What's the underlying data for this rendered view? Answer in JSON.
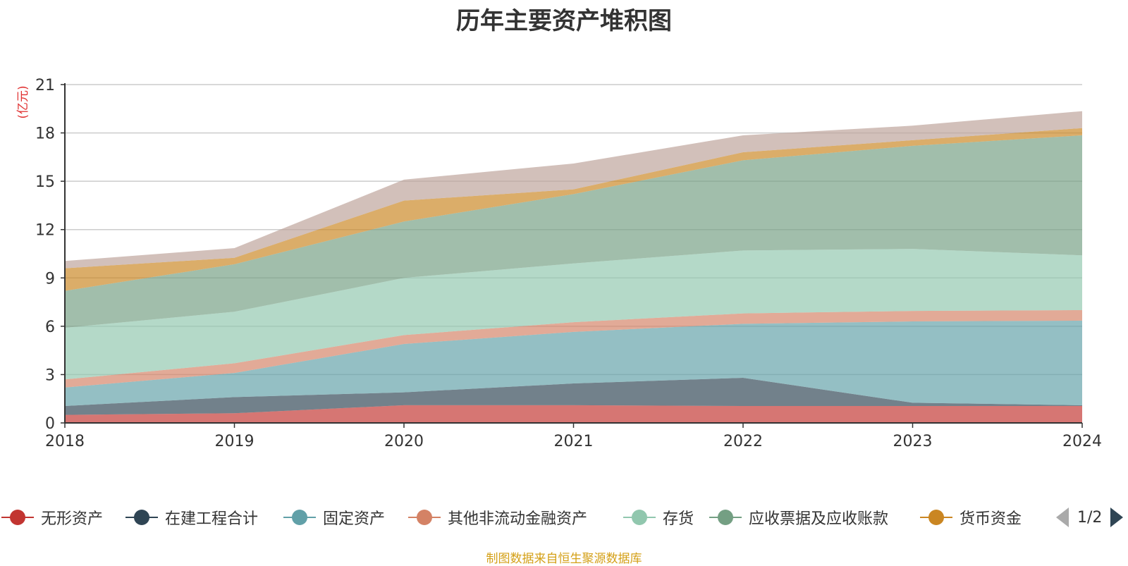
{
  "title": "历年主要资产堆积图",
  "unit_label": "(亿元)",
  "source": "制图数据来自恒生聚源数据库",
  "pager": {
    "text": "1/2"
  },
  "chart_data": {
    "type": "area",
    "stacked": true,
    "title": "历年主要资产堆积图",
    "ylabel": "(亿元)",
    "ylim": [
      0,
      21
    ],
    "yticks": [
      0,
      3,
      6,
      9,
      12,
      15,
      18,
      21
    ],
    "categories": [
      "2018",
      "2019",
      "2020",
      "2021",
      "2022",
      "2023",
      "2024"
    ],
    "grid": true,
    "legend_position": "bottom",
    "series": [
      {
        "name": "无形资产",
        "color": "#c23531",
        "values": [
          0.5,
          0.6,
          1.1,
          1.1,
          1.05,
          1.05,
          1.05
        ],
        "legend": true
      },
      {
        "name": "在建工程合计",
        "color": "#2f4554",
        "values": [
          0.55,
          1.0,
          0.8,
          1.35,
          1.75,
          0.2,
          0.05
        ],
        "legend": true
      },
      {
        "name": "固定资产",
        "color": "#61a0a8",
        "values": [
          1.15,
          1.5,
          3.0,
          3.2,
          3.35,
          5.05,
          5.25
        ],
        "legend": true
      },
      {
        "name": "其他非流动金融资产",
        "color": "#d48265",
        "values": [
          0.5,
          0.6,
          0.55,
          0.6,
          0.65,
          0.65,
          0.65
        ],
        "legend": true
      },
      {
        "name": "存货",
        "color": "#91c7ae",
        "values": [
          3.2,
          3.2,
          3.55,
          3.65,
          3.9,
          3.85,
          3.4
        ],
        "legend": true
      },
      {
        "name": "应收票据及应收账款",
        "color": "#749f83",
        "values": [
          2.3,
          2.95,
          3.5,
          4.3,
          5.6,
          6.4,
          7.45
        ],
        "legend": true
      },
      {
        "name": "货币资金",
        "color": "#ca8622",
        "values": [
          1.4,
          0.4,
          1.3,
          0.3,
          0.5,
          0.35,
          0.45
        ],
        "legend": true
      },
      {
        "name": "",
        "color": "#bda29a",
        "values": [
          0.45,
          0.6,
          1.3,
          1.6,
          1.05,
          0.9,
          1.05
        ],
        "legend": false
      }
    ]
  }
}
